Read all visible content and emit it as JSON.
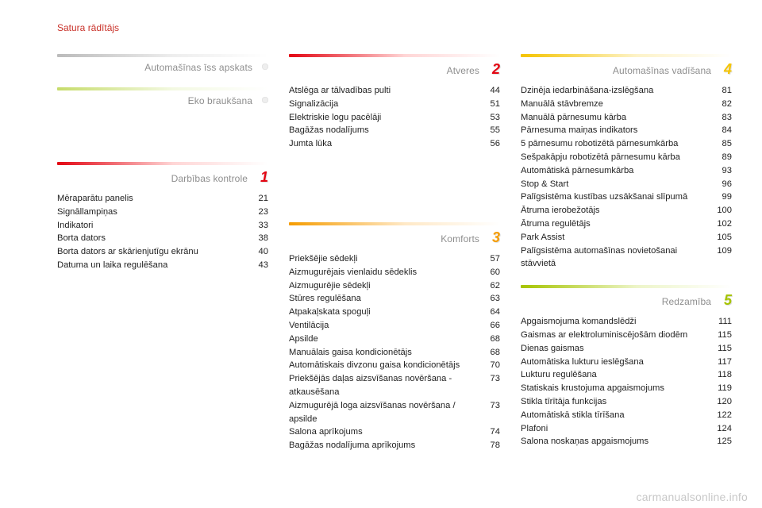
{
  "header": {
    "text": "Satura rādītājs",
    "color": "#c9322a"
  },
  "watermark": "carmanualsonline.info",
  "colors": {
    "text": "#222222",
    "muted": "#8e8e8e"
  },
  "columns": [
    {
      "sections": [
        {
          "title": "Automašīnas īss apskats",
          "number": "",
          "number_color": "#bbbbbb",
          "title_color": "#8e8e8e",
          "bar_colors": [
            "#bbbbbb",
            "#eeeeee"
          ],
          "show_dot": true,
          "entries": []
        },
        {
          "title": "Eko braukšana",
          "number": "",
          "number_color": "#bbbbbb",
          "title_color": "#8e8e8e",
          "bar_colors": [
            "#c6dc6a",
            "#f3f9e2"
          ],
          "show_dot": true,
          "entries": []
        },
        {
          "title": "Darbības kontrole",
          "number": "1",
          "number_color": "#e30613",
          "title_color": "#8e8e8e",
          "bar_colors": [
            "#e30613",
            "#ffd6d6"
          ],
          "show_dot": false,
          "pre_gap": 70,
          "entries": [
            {
              "label": "Mēraparātu panelis",
              "page": 21
            },
            {
              "label": "Signāllampiņas",
              "page": 23
            },
            {
              "label": "Indikatori",
              "page": 33
            },
            {
              "label": "Borta dators",
              "page": 38
            },
            {
              "label": "Borta dators ar skārienjutīgu ekrānu",
              "page": 40
            },
            {
              "label": "Datuma un laika regulēšana",
              "page": 43
            }
          ]
        }
      ]
    },
    {
      "sections": [
        {
          "title": "Atveres",
          "number": "2",
          "number_color": "#e30613",
          "title_color": "#8e8e8e",
          "bar_colors": [
            "#e30613",
            "#ffd6d6"
          ],
          "show_dot": false,
          "entries": [
            {
              "label": "Atslēga ar tālvadības pulti",
              "page": 44
            },
            {
              "label": "Signalizācija",
              "page": 51
            },
            {
              "label": "Elektriskie logu pacēlāji",
              "page": 53
            },
            {
              "label": "Bagāžas nodalījums",
              "page": 55
            },
            {
              "label": "Jumta lūka",
              "page": 56
            }
          ]
        },
        {
          "title": "Komforts",
          "number": "3",
          "number_color": "#f59c00",
          "title_color": "#8e8e8e",
          "bar_colors": [
            "#f59c00",
            "#ffe9c7"
          ],
          "show_dot": false,
          "pre_gap": 90,
          "entries": [
            {
              "label": "Priekšējie sēdekļi",
              "page": 57
            },
            {
              "label": "Aizmugurējais vienlaidu sēdeklis",
              "page": 60
            },
            {
              "label": "Aizmugurējie sēdekļi",
              "page": 62
            },
            {
              "label": "Stūres regulēšana",
              "page": 63
            },
            {
              "label": "Atpakaļskata spoguļi",
              "page": 64
            },
            {
              "label": "Ventilācija",
              "page": 66
            },
            {
              "label": "Apsilde",
              "page": 68
            },
            {
              "label": "Manuālais gaisa kondicionētājs",
              "page": 68
            },
            {
              "label": "Automātiskais divzonu gaisa kondicionētājs",
              "page": 70
            },
            {
              "label": "Priekšējās daļas aizsvīšanas novēršana - atkausēšana",
              "page": 73,
              "wrap": true
            },
            {
              "label": "Aizmugurējā loga aizsvīšanas novēršana / apsilde",
              "page": 73,
              "wrap": true
            },
            {
              "label": "Salona aprīkojums",
              "page": 74
            },
            {
              "label": "Bagāžas nodalījuma aprīkojums",
              "page": 78
            }
          ]
        }
      ]
    },
    {
      "sections": [
        {
          "title": "Automašīnas vadīšana",
          "number": "4",
          "number_color": "#f5c400",
          "title_color": "#8e8e8e",
          "bar_colors": [
            "#f5c400",
            "#fdf3c9"
          ],
          "show_dot": false,
          "entries": [
            {
              "label": "Dzinēja iedarbināšana-izslēgšana",
              "page": 81
            },
            {
              "label": "Manuālā stāvbremze",
              "page": 82
            },
            {
              "label": "Manuālā pārnesumu kārba",
              "page": 83
            },
            {
              "label": "Pārnesuma maiņas indikators",
              "page": 84
            },
            {
              "label": "5 pārnesumu robotizētā pārnesumkārba",
              "page": 85
            },
            {
              "label": "Sešpakāpju robotizētā pārnesumu kārba",
              "page": 89
            },
            {
              "label": "Automātiskā pārnesumkārba",
              "page": 93
            },
            {
              "label": "Stop & Start",
              "page": 96
            },
            {
              "label": "Palīgsistēma kustības uzsākšanai slīpumā",
              "page": 99
            },
            {
              "label": "Ātruma ierobežotājs",
              "page": 100
            },
            {
              "label": "Ātruma regulētājs",
              "page": 102
            },
            {
              "label": "Park Assist",
              "page": 105
            },
            {
              "label": "Palīgsistēma automašīnas novietošanai stāvvietā",
              "page": 109,
              "wrap": true
            }
          ]
        },
        {
          "title": "Redzamība",
          "number": "5",
          "number_color": "#a6c400",
          "title_color": "#8e8e8e",
          "bar_colors": [
            "#a6c400",
            "#edf5c9"
          ],
          "show_dot": false,
          "pre_gap": 12,
          "entries": [
            {
              "label": "Apgaismojuma komandslēdži",
              "page": 111
            },
            {
              "label": "Gaismas ar elektroluminiscējošām diodēm",
              "page": 115
            },
            {
              "label": "Dienas gaismas",
              "page": 115
            },
            {
              "label": "Automātiska lukturu ieslēgšana",
              "page": 117
            },
            {
              "label": "Lukturu regulēšana",
              "page": 118
            },
            {
              "label": "Statiskais krustojuma apgaismojums",
              "page": 119
            },
            {
              "label": "Stikla tīrītāja funkcijas",
              "page": 120
            },
            {
              "label": "Automātiskā stikla tīrīšana",
              "page": 122
            },
            {
              "label": "Plafoni",
              "page": 124
            },
            {
              "label": "Salona noskaņas apgaismojums",
              "page": 125
            }
          ]
        }
      ]
    }
  ]
}
